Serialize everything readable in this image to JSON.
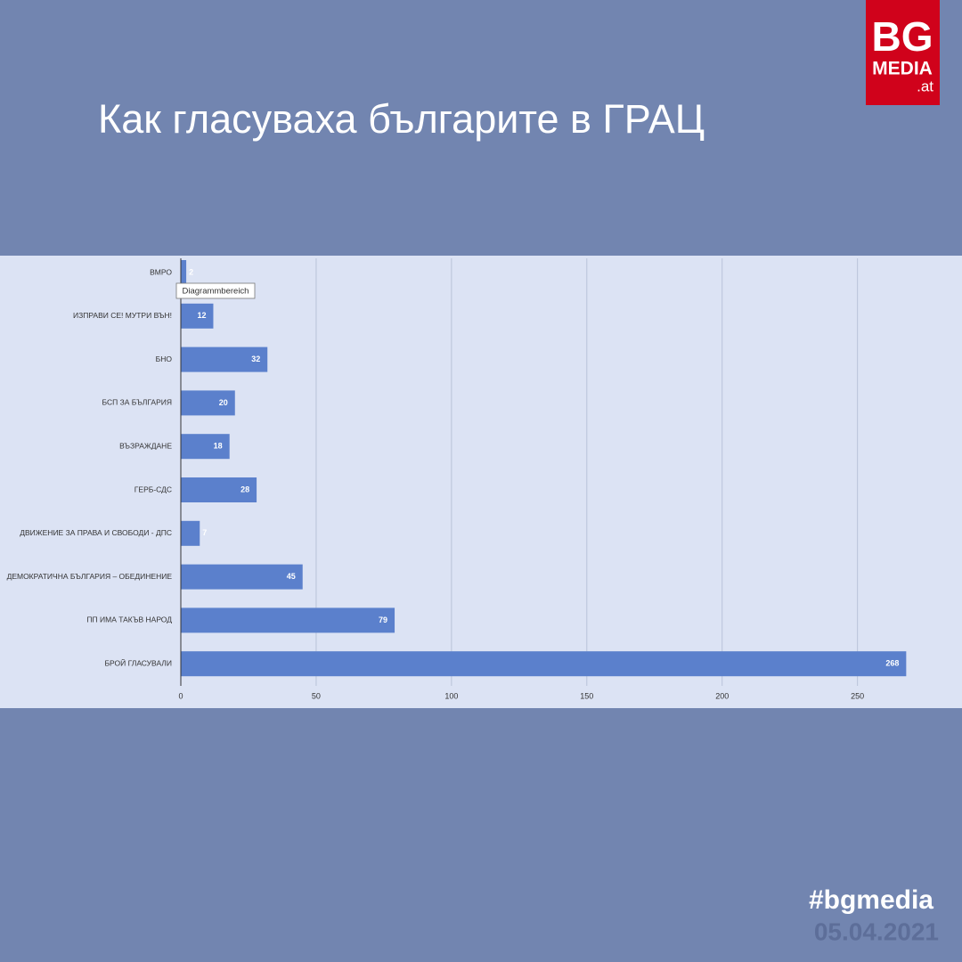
{
  "logo": {
    "main": "BG",
    "sub": "MEDIA",
    "suffix": ".at"
  },
  "tooltip": "Diagrammbereich",
  "hashtag": "#bgmedia",
  "date": "05.04.2021",
  "chart_data": {
    "type": "bar",
    "orientation": "horizontal",
    "title": "Как гласуваха българите в ГРАЦ",
    "categories": [
      "ВМРО",
      "ИЗПРАВИ СЕ! МУТРИ ВЪН!",
      "БНО",
      "БСП ЗА БЪЛГАРИЯ",
      "ВЪЗРАЖДАНЕ",
      "ГЕРБ-СДС",
      "ДВИЖЕНИЕ ЗА ПРАВА И СВОБОДИ - ДПС",
      "ДЕМОКРАТИЧНА БЪЛГАРИЯ – ОБЕДИНЕНИЕ",
      "ПП ИМА ТАКЪВ НАРОД",
      "БРОЙ ГЛАСУВАЛИ"
    ],
    "values": [
      2,
      12,
      32,
      20,
      18,
      28,
      7,
      45,
      79,
      268
    ],
    "color": "#5b80cc",
    "xlim": [
      0,
      285
    ],
    "xticks": [
      0,
      50,
      100,
      150,
      200,
      250
    ],
    "grid": true
  }
}
